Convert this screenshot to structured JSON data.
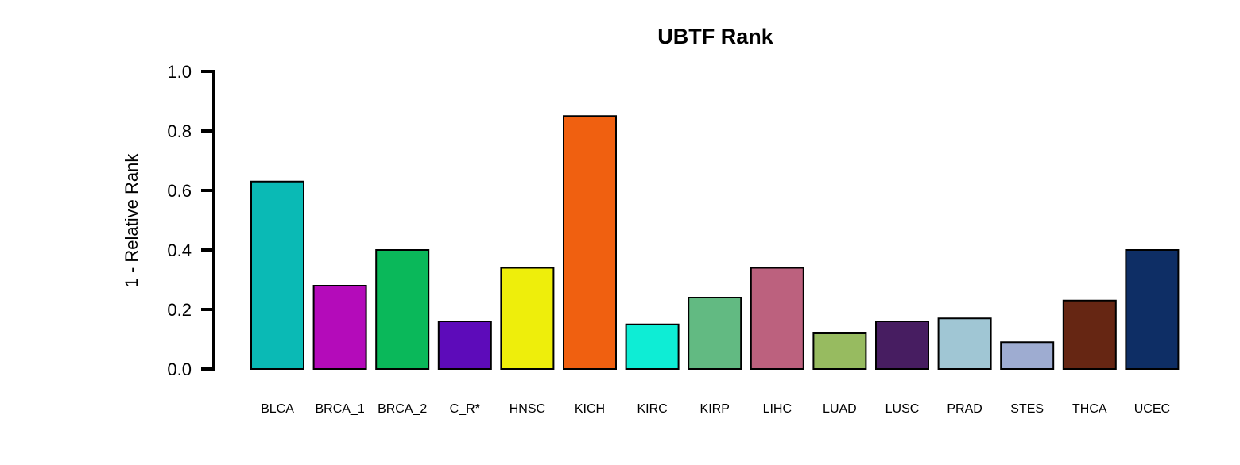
{
  "chart_data": {
    "type": "bar",
    "title": "UBTF Rank",
    "xlabel": "",
    "ylabel": "1 - Relative Rank",
    "ylim": [
      0,
      1
    ],
    "yticks": [
      "0.0",
      "0.2",
      "0.4",
      "0.6",
      "0.8",
      "1.0"
    ],
    "ytick_values": [
      0,
      0.2,
      0.4,
      0.6,
      0.8,
      1.0
    ],
    "grid": false,
    "categories": [
      "BLCA",
      "BRCA_1",
      "BRCA_2",
      "C_R*",
      "HNSC",
      "KICH",
      "KIRC",
      "KIRP",
      "LIHC",
      "LUAD",
      "LUSC",
      "PRAD",
      "STES",
      "THCA",
      "UCEC"
    ],
    "values": [
      0.63,
      0.28,
      0.4,
      0.16,
      0.34,
      0.85,
      0.15,
      0.24,
      0.34,
      0.12,
      0.16,
      0.17,
      0.09,
      0.23,
      0.4
    ],
    "colors": [
      "#0ABAB5",
      "#B40BBA",
      "#0AB85A",
      "#5D0BBA",
      "#EEEE0B",
      "#F06010",
      "#0EEDD5",
      "#62BA82",
      "#BC617E",
      "#97BB60",
      "#471D61",
      "#A0C6D4",
      "#9EACD1",
      "#662613",
      "#0E2E65"
    ],
    "bar_edge_color": "#000000"
  }
}
